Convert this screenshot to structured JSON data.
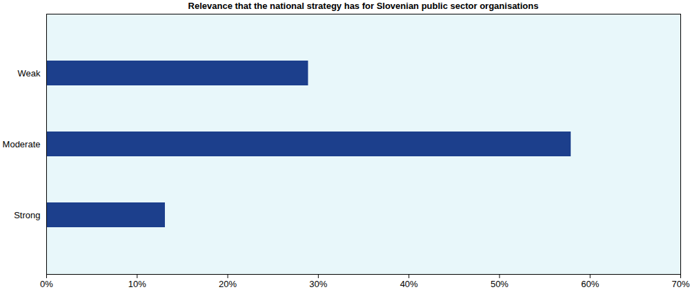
{
  "chart_data": {
    "type": "bar",
    "orientation": "horizontal",
    "title": "Relevance that the national strategy has for Slovenian public sector organisations",
    "categories": [
      "Weak",
      "Moderate",
      "Strong"
    ],
    "values": [
      28.9,
      57.9,
      13.1
    ],
    "color": "#1c3f8c",
    "xlim": [
      0,
      70
    ],
    "xticks": [
      {
        "value": 0,
        "label": "0%"
      },
      {
        "value": 10,
        "label": "10%"
      },
      {
        "value": 20,
        "label": "20%"
      },
      {
        "value": 30,
        "label": "30%"
      },
      {
        "value": 40,
        "label": "40%"
      },
      {
        "value": 50,
        "label": "50%"
      },
      {
        "value": 60,
        "label": "60%"
      },
      {
        "value": 70,
        "label": "70%"
      }
    ],
    "grid": false
  }
}
